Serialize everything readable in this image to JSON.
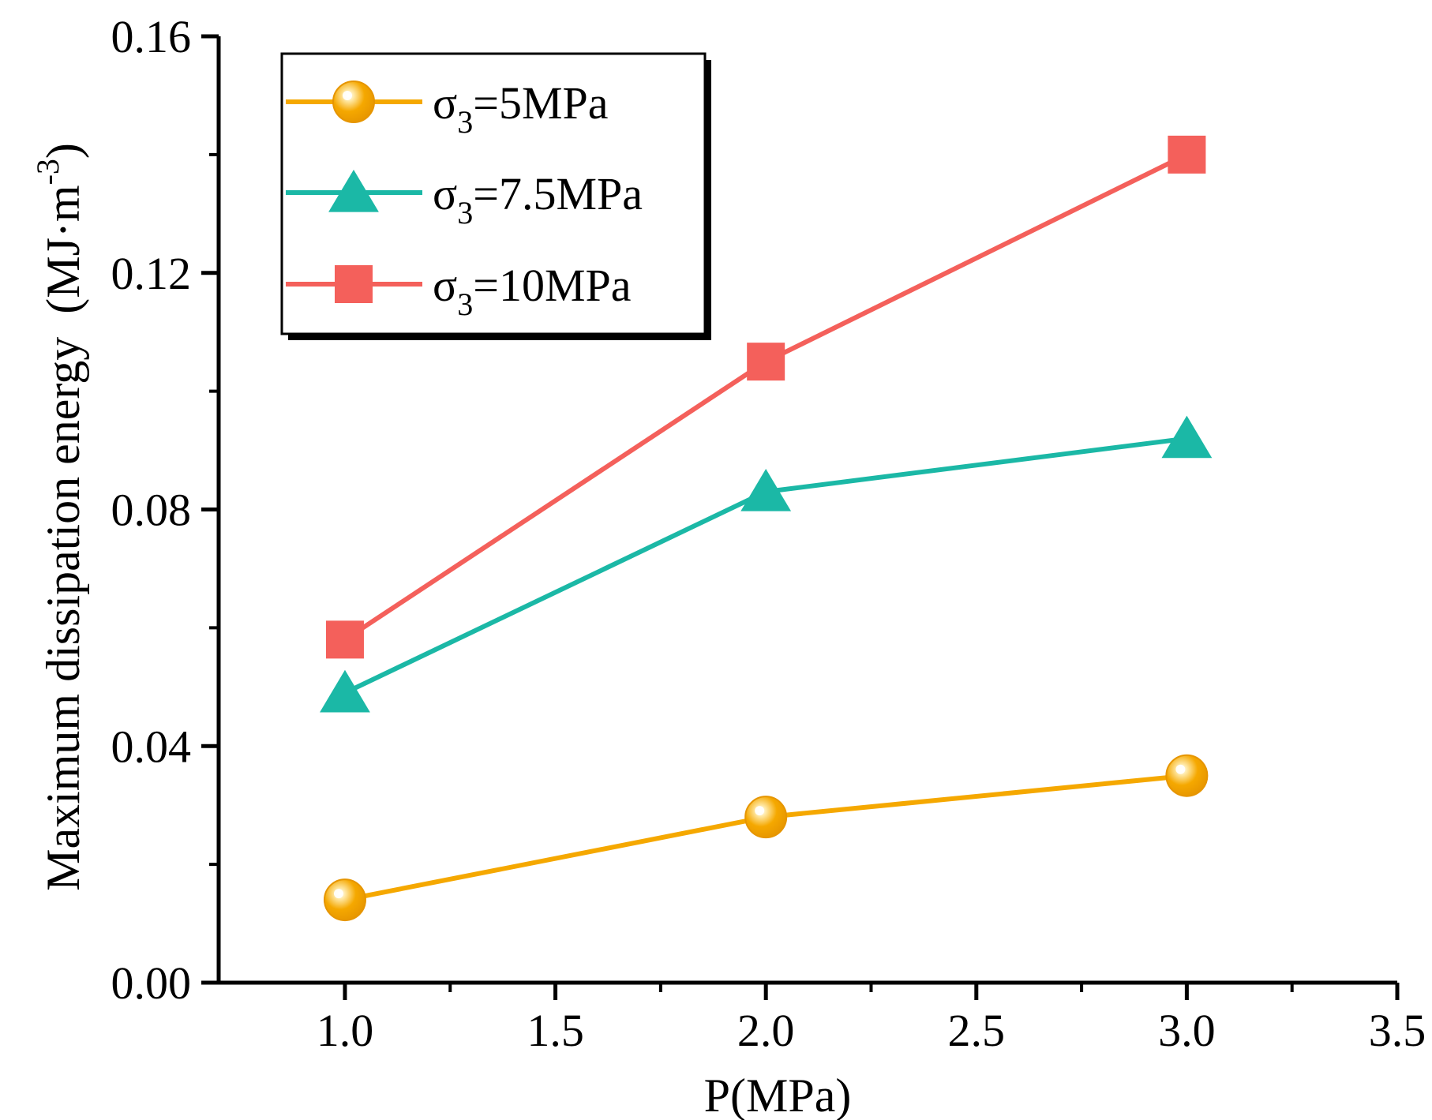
{
  "chart_data": {
    "type": "line",
    "title": "",
    "xlabel": "P(MPa)",
    "ylabel": "Maximum dissipation energy",
    "ylabel_unit_prefix": "(MJ·m",
    "ylabel_unit_exp": "-3",
    "ylabel_unit_suffix": ")",
    "xlim": [
      0.7,
      3.5
    ],
    "ylim": [
      0.0,
      0.16
    ],
    "xticks": [
      1.0,
      1.5,
      2.0,
      2.5,
      3.0,
      3.5
    ],
    "xtick_labels": [
      "1.0",
      "1.5",
      "2.0",
      "2.5",
      "3.0",
      "3.5"
    ],
    "yticks": [
      0.0,
      0.04,
      0.08,
      0.12,
      0.16
    ],
    "ytick_labels": [
      "0.00",
      "0.04",
      "0.08",
      "0.12",
      "0.16"
    ],
    "grid": false,
    "legend_position": "top-left",
    "x": [
      1.0,
      2.0,
      3.0
    ],
    "series": [
      {
        "name": "σ3=5MPa",
        "symbol": "σ",
        "subscript": "3",
        "value_label": "=5MPa",
        "marker": "circle",
        "color": "#F5A800",
        "values": [
          0.014,
          0.028,
          0.035
        ]
      },
      {
        "name": "σ3=7.5MPa",
        "symbol": "σ",
        "subscript": "3",
        "value_label": "=7.5MPa",
        "marker": "triangle",
        "color": "#1BB8A6",
        "values": [
          0.049,
          0.083,
          0.092
        ]
      },
      {
        "name": "σ3=10MPa",
        "symbol": "σ",
        "subscript": "3",
        "value_label": "=10MPa",
        "marker": "square",
        "color": "#F4605B",
        "values": [
          0.058,
          0.105,
          0.14
        ]
      }
    ]
  }
}
